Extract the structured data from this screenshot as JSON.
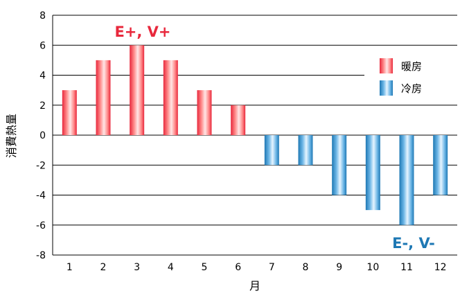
{
  "chart_data": {
    "type": "bar",
    "categories": [
      "1",
      "2",
      "3",
      "4",
      "5",
      "6",
      "7",
      "8",
      "9",
      "10",
      "11",
      "12"
    ],
    "series": [
      {
        "name": "暖房",
        "values": [
          3,
          5,
          6,
          5,
          3,
          2,
          0,
          0,
          0,
          0,
          0,
          0
        ]
      },
      {
        "name": "冷房",
        "values": [
          0,
          0,
          0,
          0,
          0,
          0,
          -2,
          -2,
          -4,
          -5,
          -6,
          -4
        ]
      }
    ],
    "xlabel": "月",
    "ylabel": "消費熱量",
    "ylim": [
      -8,
      8
    ],
    "yticks": [
      "8",
      "6",
      "4",
      "2",
      "0",
      "-2",
      "-4",
      "-6",
      "-8"
    ],
    "grid": true,
    "legend": "right",
    "annotations": [
      {
        "text": "E+, V+",
        "color": "#e8283c"
      },
      {
        "text": "E-, V-",
        "color": "#1e78b4"
      }
    ],
    "colors": {
      "heating": "#e8283c",
      "cooling": "#1e78b4",
      "grid": "#000000"
    }
  }
}
